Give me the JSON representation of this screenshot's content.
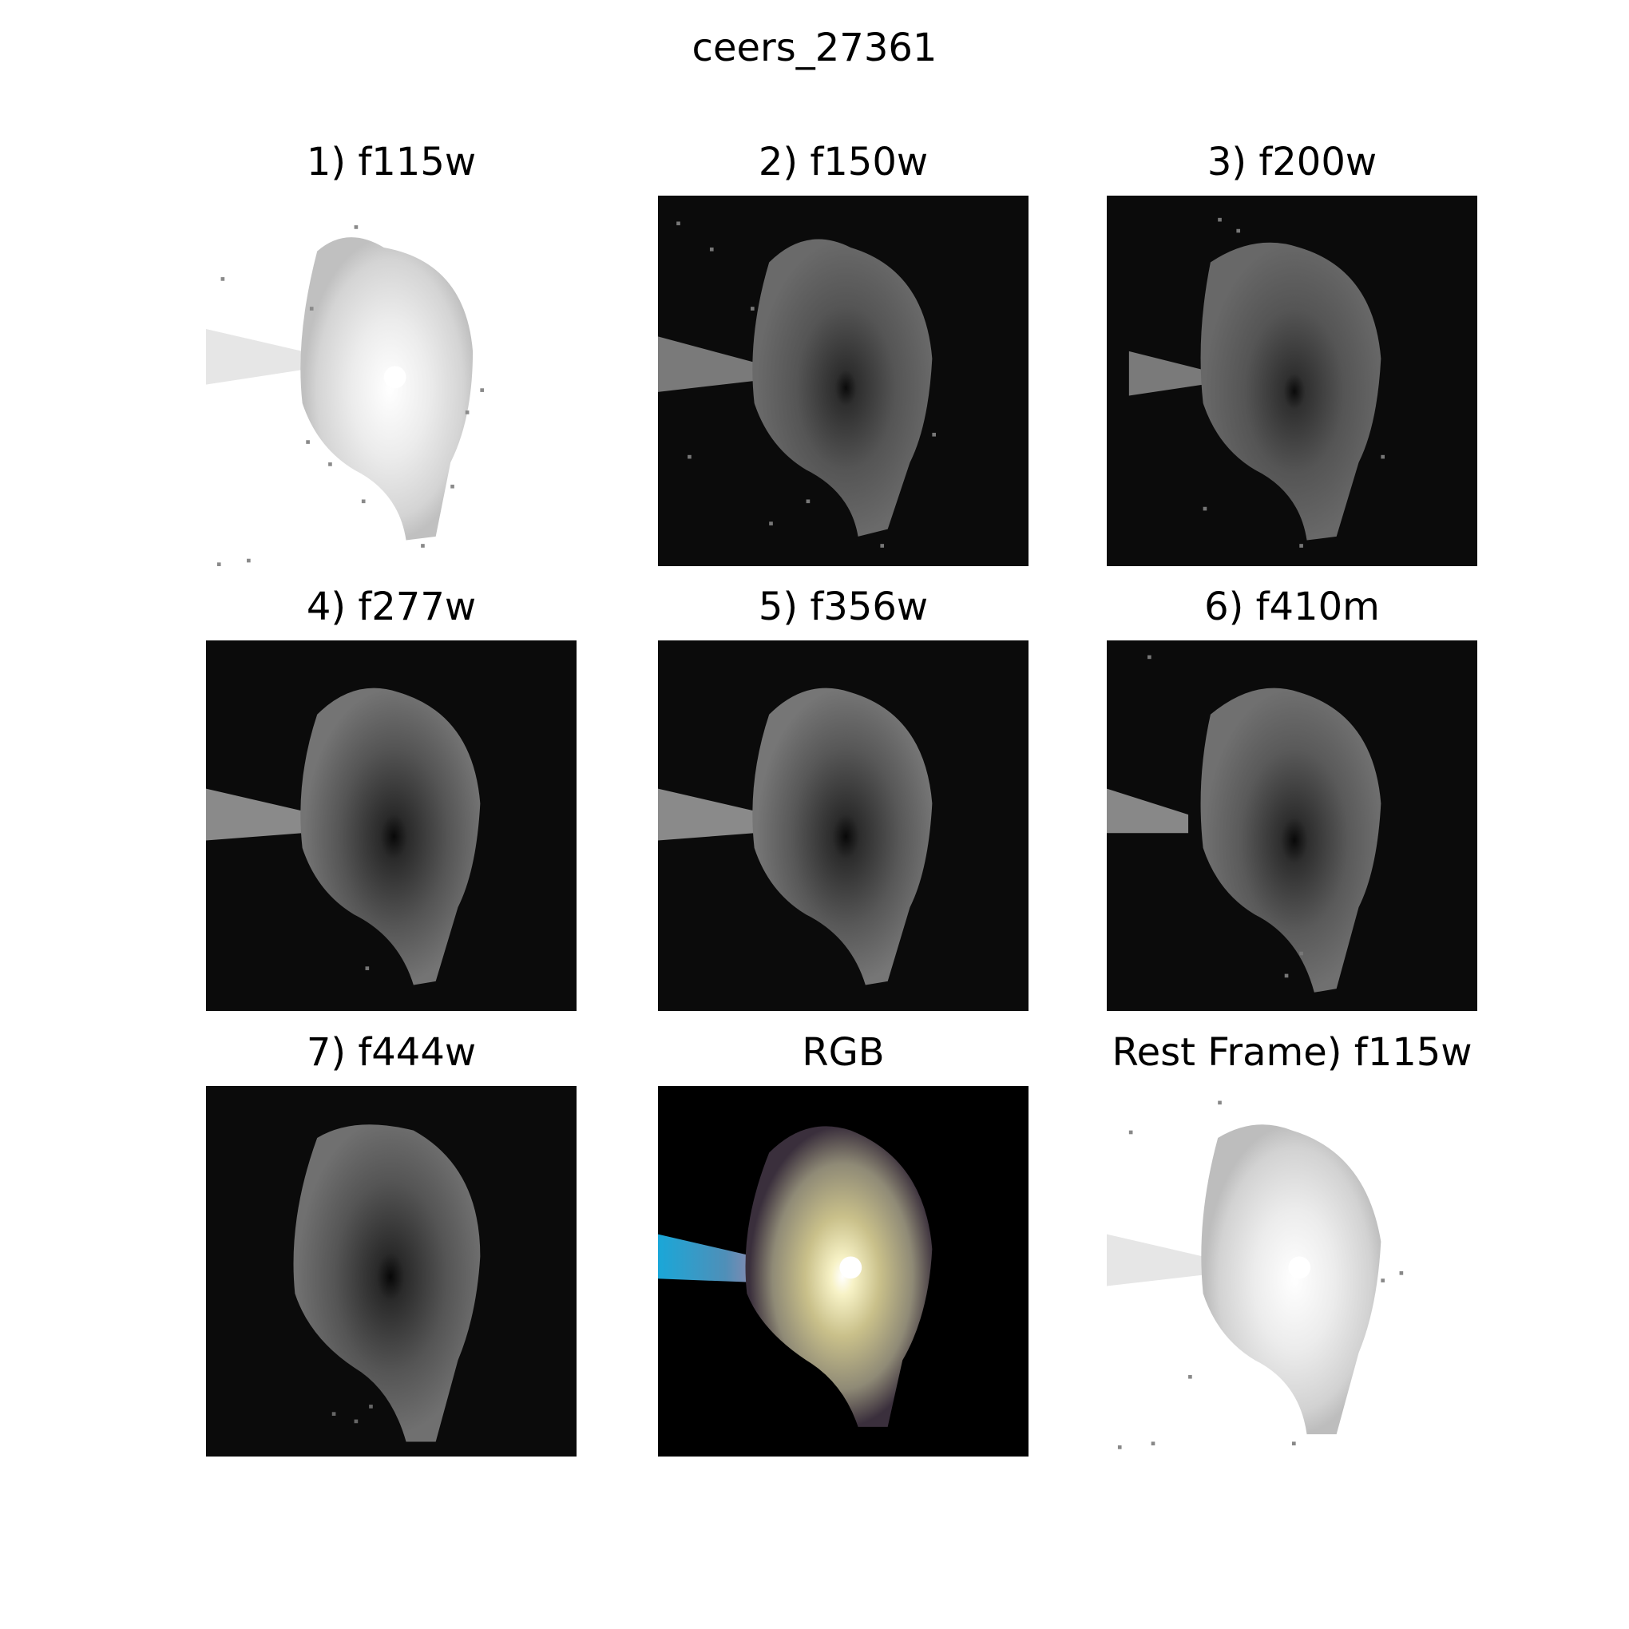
{
  "figure": {
    "title": "ceers_27361"
  },
  "panels": [
    {
      "title": "1) f115w",
      "kind": "inverted",
      "background": "#ffffff"
    },
    {
      "title": "2) f150w",
      "kind": "grayscale",
      "background": "#0b0b0b"
    },
    {
      "title": "3) f200w",
      "kind": "grayscale",
      "background": "#0b0b0b"
    },
    {
      "title": "4) f277w",
      "kind": "grayscale",
      "background": "#0b0b0b"
    },
    {
      "title": "5) f356w",
      "kind": "grayscale",
      "background": "#0b0b0b"
    },
    {
      "title": "6) f410m",
      "kind": "grayscale",
      "background": "#0b0b0b"
    },
    {
      "title": "7) f444w",
      "kind": "grayscale",
      "background": "#0b0b0b"
    },
    {
      "title": "RGB",
      "kind": "rgb",
      "background": "#000000"
    },
    {
      "title": "Rest Frame) f115w",
      "kind": "inverted",
      "background": "#ffffff"
    }
  ]
}
